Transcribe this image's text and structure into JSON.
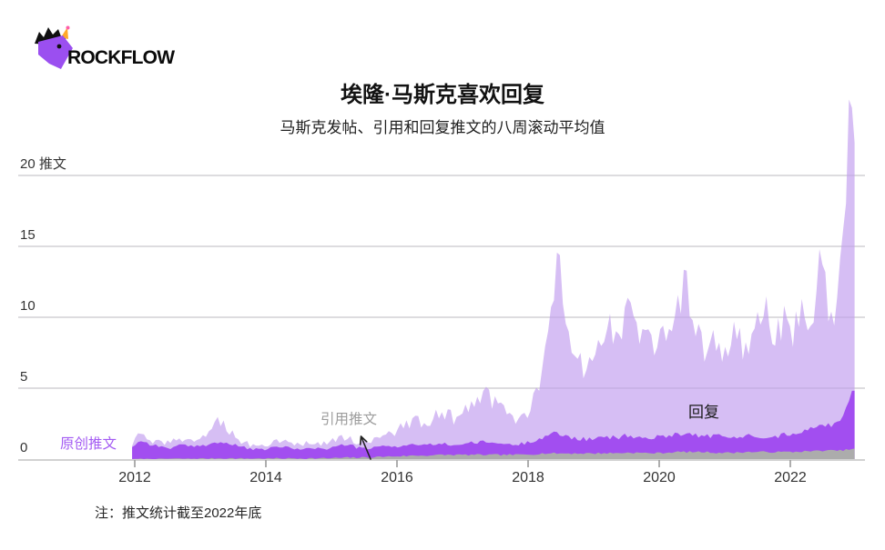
{
  "brand": {
    "name": "ROCKFLOW",
    "logo_icon": "unicorn-icon",
    "logo_colors": {
      "head": "#9b4ff0",
      "mane": "#101010",
      "horn": "#ffaa2b",
      "horn_tip": "#ff5ea8"
    }
  },
  "chart_data": {
    "type": "area",
    "stacked": true,
    "title": "埃隆·马斯克喜欢回复",
    "subtitle": "马斯克发帖、引用和回复推文的八周滚动平均值",
    "footnote": "注：推文统计截至2022年底",
    "y_unit": "推文",
    "y_top_label": "20 推文",
    "y_ticks": [
      0,
      5,
      10,
      15,
      20
    ],
    "x_ticks": [
      2012,
      2014,
      2016,
      2018,
      2020,
      2022
    ],
    "x_range": [
      2011.96,
      2022.98
    ],
    "ylim": [
      0,
      28
    ],
    "grid": true,
    "legend_position": "inline-annotations",
    "series": [
      {
        "name": "引用推文",
        "color": "#acacac",
        "stack_order": 0
      },
      {
        "name": "原创推文",
        "color": "#a24ef0",
        "stack_order": 1
      },
      {
        "name": "回复",
        "color": "#d6bef4",
        "stack_order": 2
      }
    ],
    "annotations": [
      {
        "text": "原创推文",
        "color": "#a35af3",
        "arrow": false
      },
      {
        "text": "引用推文",
        "color": "#9c9c9c",
        "arrow": true
      },
      {
        "text": "回复",
        "color": "#1a1a1a",
        "arrow": false
      }
    ],
    "points_format": [
      "year",
      "引用推文",
      "原创推文",
      "回复"
    ],
    "points": [
      [
        2011.96,
        0,
        0.9,
        0.25
      ],
      [
        2012.1,
        0.02,
        1.3,
        0.45
      ],
      [
        2012.25,
        0.02,
        1.0,
        0.35
      ],
      [
        2012.4,
        0.02,
        0.85,
        0.3
      ],
      [
        2012.55,
        0.03,
        0.75,
        0.4
      ],
      [
        2012.7,
        0.03,
        0.95,
        0.5
      ],
      [
        2012.85,
        0.03,
        0.85,
        0.45
      ],
      [
        2013.0,
        0.04,
        0.9,
        0.6
      ],
      [
        2013.15,
        0.04,
        1.05,
        1.0
      ],
      [
        2013.3,
        0.05,
        1.15,
        1.55
      ],
      [
        2013.45,
        0.05,
        1.0,
        0.9
      ],
      [
        2013.6,
        0.04,
        0.85,
        0.45
      ],
      [
        2013.75,
        0.04,
        0.7,
        0.25
      ],
      [
        2013.9,
        0.04,
        0.6,
        0.2
      ],
      [
        2014.05,
        0.04,
        0.7,
        0.3
      ],
      [
        2014.2,
        0.05,
        0.85,
        0.4
      ],
      [
        2014.35,
        0.05,
        0.75,
        0.3
      ],
      [
        2014.5,
        0.05,
        0.6,
        0.3
      ],
      [
        2014.65,
        0.05,
        0.8,
        0.45
      ],
      [
        2014.8,
        0.05,
        0.7,
        0.35
      ],
      [
        2014.95,
        0.06,
        0.65,
        0.35
      ],
      [
        2015.1,
        0.08,
        0.85,
        0.55
      ],
      [
        2015.25,
        0.1,
        0.95,
        0.5
      ],
      [
        2015.4,
        0.1,
        0.7,
        0.35
      ],
      [
        2015.55,
        0.12,
        0.6,
        0.4
      ],
      [
        2015.7,
        0.15,
        0.7,
        0.55
      ],
      [
        2015.85,
        0.18,
        0.75,
        0.75
      ],
      [
        2016.0,
        0.2,
        0.7,
        1.1
      ],
      [
        2016.15,
        0.22,
        0.75,
        1.5
      ],
      [
        2016.3,
        0.25,
        0.8,
        1.75
      ],
      [
        2016.45,
        0.25,
        0.7,
        1.4
      ],
      [
        2016.6,
        0.28,
        0.8,
        2.0
      ],
      [
        2016.75,
        0.3,
        0.75,
        2.25
      ],
      [
        2016.9,
        0.3,
        0.7,
        1.75
      ],
      [
        2017.05,
        0.3,
        0.8,
        2.4
      ],
      [
        2017.2,
        0.3,
        0.85,
        3.0
      ],
      [
        2017.35,
        0.3,
        0.9,
        3.35
      ],
      [
        2017.5,
        0.3,
        0.85,
        2.8
      ],
      [
        2017.65,
        0.3,
        0.75,
        2.3
      ],
      [
        2017.8,
        0.3,
        0.7,
        1.95
      ],
      [
        2017.95,
        0.32,
        0.8,
        1.75
      ],
      [
        2018.1,
        0.35,
        1.0,
        2.9
      ],
      [
        2018.25,
        0.4,
        1.2,
        5.5
      ],
      [
        2018.4,
        0.4,
        1.4,
        11.2
      ],
      [
        2018.5,
        0.4,
        1.35,
        11.9
      ],
      [
        2018.6,
        0.4,
        1.2,
        7.8
      ],
      [
        2018.75,
        0.4,
        1.05,
        5.3
      ],
      [
        2018.9,
        0.4,
        1.0,
        5.0
      ],
      [
        2019.05,
        0.4,
        1.05,
        6.6
      ],
      [
        2019.2,
        0.42,
        1.1,
        8.0
      ],
      [
        2019.35,
        0.42,
        1.1,
        7.0
      ],
      [
        2019.5,
        0.45,
        1.2,
        9.2
      ],
      [
        2019.65,
        0.45,
        1.1,
        7.4
      ],
      [
        2019.8,
        0.42,
        1.05,
        8.3
      ],
      [
        2019.95,
        0.42,
        1.1,
        6.4
      ],
      [
        2020.1,
        0.45,
        1.2,
        7.7
      ],
      [
        2020.25,
        0.5,
        1.3,
        9.2
      ],
      [
        2020.4,
        0.5,
        1.3,
        10.6
      ],
      [
        2020.55,
        0.5,
        1.2,
        7.8
      ],
      [
        2020.7,
        0.5,
        1.1,
        6.1
      ],
      [
        2020.85,
        0.45,
        1.2,
        7.2
      ],
      [
        2021.0,
        0.45,
        1.1,
        6.0
      ],
      [
        2021.15,
        0.45,
        1.05,
        7.4
      ],
      [
        2021.3,
        0.5,
        1.1,
        6.3
      ],
      [
        2021.45,
        0.5,
        1.2,
        7.7
      ],
      [
        2021.6,
        0.5,
        1.1,
        8.9
      ],
      [
        2021.75,
        0.5,
        1.05,
        7.3
      ],
      [
        2021.9,
        0.5,
        1.2,
        8.2
      ],
      [
        2022.05,
        0.5,
        1.35,
        7.1
      ],
      [
        2022.2,
        0.55,
        1.5,
        8.6
      ],
      [
        2022.35,
        0.55,
        1.6,
        7.9
      ],
      [
        2022.45,
        0.6,
        1.8,
        14.2
      ],
      [
        2022.55,
        0.6,
        1.7,
        8.8
      ],
      [
        2022.65,
        0.6,
        1.85,
        7.5
      ],
      [
        2022.75,
        0.6,
        2.2,
        9.8
      ],
      [
        2022.85,
        0.65,
        3.0,
        16.0
      ],
      [
        2022.92,
        0.7,
        3.9,
        23.2
      ],
      [
        2022.98,
        0.7,
        4.1,
        16.2
      ]
    ]
  }
}
